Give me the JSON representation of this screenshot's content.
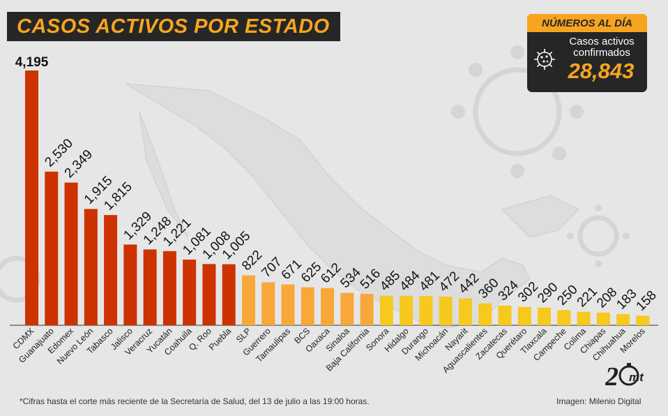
{
  "header": {
    "title": "CASOS ACTIVOS POR ESTADO"
  },
  "stats_box": {
    "header": "NÚMEROS AL DÍA",
    "label": "Casos activos confirmados",
    "value": "28,843",
    "icon": "virus-icon"
  },
  "footer": {
    "note": "*Cifras hasta el corte más reciente de la Secretaría de Salud, del 13 de julio a las 19:00 horas.",
    "credit": "Imagen: Milenio Digital",
    "logo_text": "mt"
  },
  "colors": {
    "background": "#e6e6e6",
    "dark": "#262626",
    "accent": "#f7a520",
    "tier_high": "#cc3300",
    "tier_mid": "#f7a838",
    "tier_low": "#f7c81e"
  },
  "chart_data": {
    "type": "bar",
    "title": "CASOS ACTIVOS POR ESTADO",
    "xlabel": "",
    "ylabel": "",
    "ylim": [
      0,
      4195
    ],
    "grid": false,
    "categories": [
      "CDMX",
      "Guanajuato",
      "Edomex",
      "Nuevo León",
      "Tabasco",
      "Jalisco",
      "Veracruz",
      "Yucatán",
      "Coahuila",
      "Q. Roo",
      "Puebla",
      "SLP",
      "Guerrero",
      "Tamaulipas",
      "BCS",
      "Oaxaca",
      "Sinaloa",
      "Baja California",
      "Sonora",
      "Hidalgo",
      "Durango",
      "Michoacán",
      "Nayarit",
      "Aguascalientes",
      "Zacatecas",
      "Querétaro",
      "Tlaxcala",
      "Campeche",
      "Colima",
      "Chiapas",
      "Chihuahua",
      "Morelos"
    ],
    "values": [
      4195,
      2530,
      2349,
      1915,
      1815,
      1329,
      1248,
      1221,
      1081,
      1008,
      1005,
      822,
      707,
      671,
      625,
      612,
      534,
      516,
      485,
      484,
      481,
      472,
      442,
      360,
      324,
      302,
      290,
      250,
      221,
      208,
      183,
      158
    ],
    "value_labels": [
      "4,195",
      "2,530",
      "2,349",
      "1,915",
      "1,815",
      "1,329",
      "1,248",
      "1,221",
      "1,081",
      "1,008",
      "1,005",
      "822",
      "707",
      "671",
      "625",
      "612",
      "534",
      "516",
      "485",
      "484",
      "481",
      "472",
      "442",
      "360",
      "324",
      "302",
      "290",
      "250",
      "221",
      "208",
      "183",
      "158"
    ],
    "color_tiers": [
      "high",
      "high",
      "high",
      "high",
      "high",
      "high",
      "high",
      "high",
      "high",
      "high",
      "high",
      "mid",
      "mid",
      "mid",
      "mid",
      "mid",
      "mid",
      "mid",
      "low",
      "low",
      "low",
      "low",
      "low",
      "low",
      "low",
      "low",
      "low",
      "low",
      "low",
      "low",
      "low",
      "low"
    ]
  }
}
